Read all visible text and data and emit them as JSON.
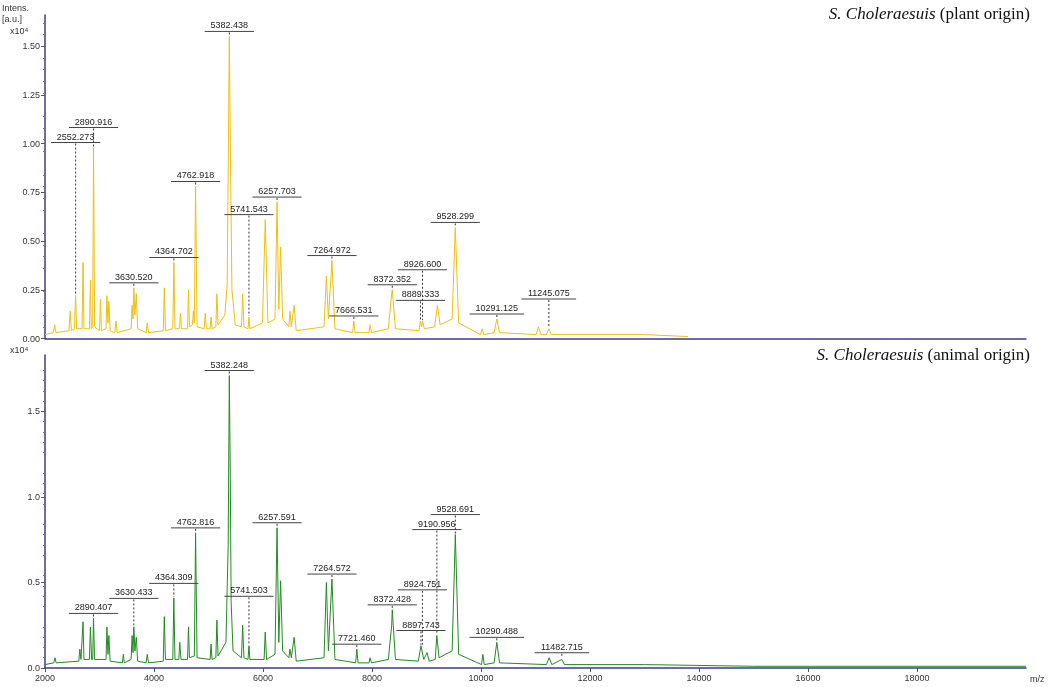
{
  "chart_data": [
    {
      "type": "line",
      "title": "S. Choleraesuis (plant origin)",
      "ylabel": "Intens. [a.u.]",
      "color": "#f0c010",
      "grid": false,
      "marker": "none",
      "line_style": "solid",
      "tick_labels": "y",
      "xlim": [
        2000,
        20000
      ],
      "ylim": [
        0,
        1.66
      ],
      "yticks": [
        {
          "value": 0,
          "label": "0.00"
        },
        {
          "value": 0.25,
          "label": "0.25"
        },
        {
          "value": 0.5,
          "label": "0.50"
        },
        {
          "value": 0.75,
          "label": "0.75"
        },
        {
          "value": 1,
          "label": "1.00"
        },
        {
          "value": 1.25,
          "label": "1.25"
        },
        {
          "value": 1.5,
          "label": "1.50"
        }
      ],
      "x": [
        2000,
        2150,
        2177,
        2200,
        2440,
        2462,
        2485,
        2540,
        2562,
        2580,
        2680,
        2698,
        2715,
        2815,
        2834,
        2850,
        2875,
        2891,
        2910,
        3000,
        3018,
        3035,
        3120,
        3136,
        3155,
        3172,
        3195,
        3280,
        3302,
        3325,
        3580,
        3598,
        3615,
        3630,
        3650,
        3675,
        3700,
        3855,
        3876,
        3900,
        4170,
        4189,
        4210,
        4345,
        4365,
        4385,
        4465,
        4485,
        4505,
        4615,
        4633,
        4650,
        4705,
        4722,
        4740,
        4763,
        4790,
        4920,
        4941,
        4960,
        5030,
        5047,
        5065,
        5135,
        5154,
        5175,
        5300,
        5343,
        5382,
        5400,
        5430,
        5461,
        5490,
        5605,
        5627,
        5650,
        5725,
        5742,
        5760,
        5990,
        6041,
        6090,
        6220,
        6258,
        6290,
        6323,
        6360,
        6475,
        6494,
        6520,
        6571,
        6610,
        7120,
        7163,
        7200,
        7265,
        7320,
        7645,
        7666,
        7690,
        7945,
        7965,
        7990,
        8300,
        8361,
        8372,
        8430,
        8860,
        8889,
        8910,
        8927,
        8960,
        9150,
        9200,
        9250,
        9470,
        9528,
        9590,
        9990,
        10021,
        10050,
        10240,
        10291,
        10340,
        11010,
        11053,
        11100,
        11200,
        11245,
        11290,
        11500,
        12000,
        13000,
        13800
      ],
      "values": [
        0.02,
        0.03,
        0.07,
        0.03,
        0.04,
        0.14,
        0.04,
        0.05,
        0.22,
        0.05,
        0.05,
        0.39,
        0.05,
        0.05,
        0.3,
        0.05,
        0.06,
        0.98,
        0.06,
        0.04,
        0.2,
        0.04,
        0.05,
        0.22,
        0.08,
        0.19,
        0.04,
        0.03,
        0.09,
        0.03,
        0.05,
        0.17,
        0.1,
        0.26,
        0.12,
        0.23,
        0.05,
        0.03,
        0.08,
        0.03,
        0.04,
        0.26,
        0.04,
        0.05,
        0.39,
        0.05,
        0.05,
        0.13,
        0.05,
        0.05,
        0.25,
        0.06,
        0.07,
        0.14,
        0.08,
        0.78,
        0.06,
        0.05,
        0.13,
        0.05,
        0.05,
        0.11,
        0.05,
        0.06,
        0.23,
        0.07,
        0.12,
        0.28,
        1.55,
        1.0,
        0.25,
        0.16,
        0.07,
        0.06,
        0.23,
        0.06,
        0.05,
        0.11,
        0.05,
        0.08,
        0.61,
        0.08,
        0.1,
        0.7,
        0.15,
        0.47,
        0.1,
        0.06,
        0.14,
        0.06,
        0.17,
        0.04,
        0.06,
        0.32,
        0.1,
        0.4,
        0.05,
        0.03,
        0.09,
        0.03,
        0.03,
        0.07,
        0.03,
        0.05,
        0.23,
        0.25,
        0.05,
        0.04,
        0.09,
        0.06,
        0.09,
        0.05,
        0.06,
        0.17,
        0.07,
        0.1,
        0.57,
        0.08,
        0.02,
        0.05,
        0.02,
        0.03,
        0.1,
        0.03,
        0.02,
        0.06,
        0.02,
        0.02,
        0.05,
        0.02,
        0.02,
        0.02,
        0.02,
        0.01
      ],
      "annotations": [
        "x10⁴",
        {
          "text": "2552.273",
          "x": 2562,
          "y": 0.22
        },
        {
          "text": "2890.916",
          "x": 2891,
          "y": 0.98
        },
        {
          "text": "3630.520",
          "x": 3630,
          "y": 0.26
        },
        {
          "text": "4364.702",
          "x": 4365,
          "y": 0.39
        },
        {
          "text": "4762.918",
          "x": 4763,
          "y": 0.78
        },
        {
          "text": "5382.438",
          "x": 5382,
          "y": 1.55
        },
        {
          "text": "6257.703",
          "x": 6258,
          "y": 0.7
        },
        {
          "text": "5741.543",
          "x": 5742,
          "y": 0.11
        },
        {
          "text": "7264.972",
          "x": 7265,
          "y": 0.4
        },
        {
          "text": "7666.531",
          "x": 7666,
          "y": 0.09
        },
        {
          "text": "8372.352",
          "x": 8372,
          "y": 0.25
        },
        {
          "text": "8889.333",
          "x": 8889,
          "y": 0.09
        },
        {
          "text": "8926.600",
          "x": 8927,
          "y": 0.09
        },
        {
          "text": "9528.299",
          "x": 9528,
          "y": 0.57
        },
        {
          "text": "10291.125",
          "x": 10291,
          "y": 0.1
        },
        {
          "text": "11245.075",
          "x": 11245,
          "y": 0.05
        }
      ]
    },
    {
      "type": "line",
      "title": "S. Choleraesuis (animal origin)",
      "xlabel": "m/z",
      "color": "#228b22",
      "grid": false,
      "marker": "none",
      "line_style": "solid",
      "xlim": [
        2000,
        20000
      ],
      "ylim": [
        0,
        1.83
      ],
      "xticks": [
        2000,
        4000,
        6000,
        8000,
        10000,
        12000,
        14000,
        16000,
        18000
      ],
      "yticks": [
        {
          "value": 0,
          "label": "0.0"
        },
        {
          "value": 0.5,
          "label": "0.5"
        },
        {
          "value": 1,
          "label": "1.0"
        },
        {
          "value": 1.5,
          "label": "1.5"
        }
      ],
      "x": [
        2000,
        2160,
        2183,
        2205,
        2620,
        2639,
        2660,
        2698,
        2715,
        2815,
        2834,
        2855,
        2875,
        2890,
        2910,
        3120,
        3136,
        3155,
        3172,
        3195,
        3420,
        3438,
        3455,
        3580,
        3598,
        3615,
        3630,
        3650,
        3675,
        3700,
        3855,
        3876,
        3900,
        4170,
        4189,
        4210,
        4345,
        4364,
        4385,
        4455,
        4473,
        4495,
        4615,
        4633,
        4650,
        4740,
        4763,
        4790,
        5030,
        5047,
        5065,
        5135,
        5154,
        5175,
        5320,
        5361,
        5382,
        5400,
        5415,
        5450,
        5605,
        5627,
        5650,
        5725,
        5742,
        5760,
        6020,
        6041,
        6065,
        6220,
        6258,
        6290,
        6323,
        6360,
        6475,
        6494,
        6520,
        6571,
        6610,
        7120,
        7163,
        7200,
        7265,
        7320,
        7700,
        7721,
        7745,
        7945,
        7965,
        7990,
        8300,
        8361,
        8372,
        8430,
        8850,
        8898,
        8950,
        9010,
        9050,
        9160,
        9190,
        9230,
        9470,
        9529,
        9590,
        10010,
        10034,
        10060,
        10240,
        10290,
        10340,
        11200,
        11250,
        11300,
        11483,
        11530,
        12000,
        13000,
        15000,
        18000,
        20000
      ],
      "values": [
        0.02,
        0.03,
        0.06,
        0.03,
        0.04,
        0.11,
        0.05,
        0.27,
        0.05,
        0.05,
        0.24,
        0.05,
        0.05,
        0.29,
        0.05,
        0.05,
        0.24,
        0.08,
        0.19,
        0.04,
        0.03,
        0.08,
        0.03,
        0.05,
        0.19,
        0.09,
        0.24,
        0.1,
        0.18,
        0.04,
        0.03,
        0.08,
        0.03,
        0.04,
        0.3,
        0.05,
        0.05,
        0.41,
        0.05,
        0.05,
        0.15,
        0.05,
        0.05,
        0.24,
        0.06,
        0.07,
        0.79,
        0.06,
        0.05,
        0.14,
        0.05,
        0.06,
        0.28,
        0.07,
        0.15,
        0.72,
        1.71,
        1.11,
        0.39,
        0.1,
        0.06,
        0.25,
        0.06,
        0.05,
        0.13,
        0.05,
        0.05,
        0.21,
        0.05,
        0.08,
        0.82,
        0.15,
        0.51,
        0.1,
        0.06,
        0.11,
        0.06,
        0.18,
        0.04,
        0.06,
        0.5,
        0.1,
        0.52,
        0.05,
        0.03,
        0.11,
        0.03,
        0.03,
        0.06,
        0.03,
        0.05,
        0.25,
        0.34,
        0.05,
        0.04,
        0.13,
        0.05,
        0.09,
        0.04,
        0.05,
        0.19,
        0.06,
        0.1,
        0.78,
        0.08,
        0.02,
        0.08,
        0.02,
        0.03,
        0.15,
        0.03,
        0.02,
        0.06,
        0.02,
        0.05,
        0.02,
        0.02,
        0.02,
        0.01,
        0.01,
        0.01
      ],
      "annotations": [
        "x10⁴",
        {
          "text": "2890.407",
          "x": 2890,
          "y": 0.29
        },
        {
          "text": "3630.433",
          "x": 3630,
          "y": 0.24
        },
        {
          "text": "4364.309",
          "x": 4364,
          "y": 0.41
        },
        {
          "text": "4762.816",
          "x": 4763,
          "y": 0.79
        },
        {
          "text": "5382.248",
          "x": 5382,
          "y": 1.71
        },
        {
          "text": "5741.503",
          "x": 5742,
          "y": 0.13
        },
        {
          "text": "6257.591",
          "x": 6258,
          "y": 0.82
        },
        {
          "text": "7264.572",
          "x": 7265,
          "y": 0.52
        },
        {
          "text": "7721.460",
          "x": 7721,
          "y": 0.11
        },
        {
          "text": "8372.428",
          "x": 8372,
          "y": 0.34
        },
        {
          "text": "8897.743",
          "x": 8898,
          "y": 0.13
        },
        {
          "text": "8924.751",
          "x": 8925,
          "y": 0.13
        },
        {
          "text": "9190.956",
          "x": 9190,
          "y": 0.19
        },
        {
          "text": "9528.691",
          "x": 9529,
          "y": 0.78
        },
        {
          "text": "10290.488",
          "x": 10290,
          "y": 0.15
        },
        {
          "text": "11482.715",
          "x": 11483,
          "y": 0.06
        }
      ]
    }
  ]
}
